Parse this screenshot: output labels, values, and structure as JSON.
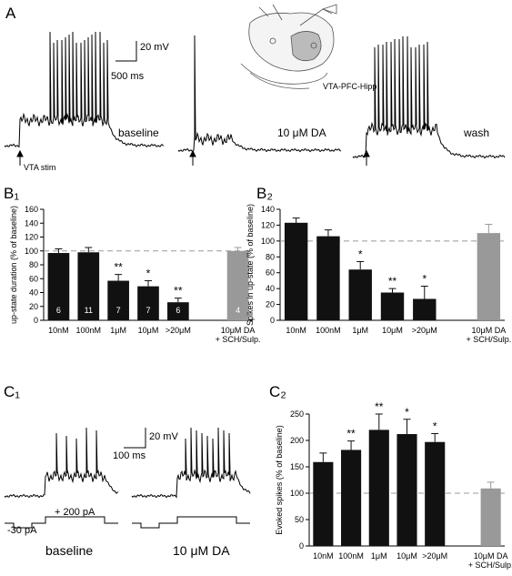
{
  "figure": {
    "panel_a": "A",
    "panel_b1": "B₁",
    "panel_b2": "B₂",
    "panel_c1": "C₁",
    "panel_c2": "C₂",
    "a_scale_mv": "20 mV",
    "a_scale_ms": "500 ms",
    "schematic_label": "VTA-PFC-Hipp",
    "a_trace_baseline": "baseline",
    "a_trace_da": "10 μM DA",
    "a_trace_wash": "wash",
    "stim_label": "VTA stim",
    "c_scale_mv": "20 mV",
    "c_scale_ms": "100 ms",
    "c_neg_current": "-30 pA",
    "c_pos_current": "+ 200 pA",
    "c_trace_baseline": "baseline",
    "c_trace_da": "10 μM DA"
  },
  "chart_data": [
    {
      "type": "bar",
      "y_label": "up-state duration (% of baseline)",
      "categories": [
        "10nM",
        "100nM",
        "1μM",
        "10μM",
        ">20μM",
        null,
        [
          "10μM DA",
          "+ SCH/Sulp."
        ]
      ],
      "values": [
        97,
        98,
        57,
        49,
        26,
        null,
        100
      ],
      "errors": [
        6,
        7,
        9,
        8,
        6,
        null,
        5
      ],
      "colors": [
        "#111111",
        "#111111",
        "#111111",
        "#111111",
        "#111111",
        null,
        "#999999"
      ],
      "significance": [
        null,
        null,
        "**",
        "*",
        "**",
        null,
        null
      ],
      "n_labels": [
        "6",
        "11",
        "7",
        "7",
        "6",
        null,
        "4"
      ],
      "reference_line": 100,
      "ylim": [
        0,
        160
      ],
      "yticks": [
        0,
        20,
        40,
        60,
        80,
        100,
        120,
        140,
        160
      ]
    },
    {
      "type": "bar",
      "y_label": "Spikes in up-state (% of baseline)",
      "categories": [
        "10nM",
        "100nM",
        "1μM",
        "10μM",
        ">20μM",
        null,
        [
          "10μM DA",
          "+ SCH/Sulp."
        ]
      ],
      "values": [
        123,
        106,
        64,
        35,
        27,
        null,
        110
      ],
      "errors": [
        6,
        8,
        10,
        5,
        16,
        null,
        11
      ],
      "colors": [
        "#111111",
        "#111111",
        "#111111",
        "#111111",
        "#111111",
        null,
        "#999999"
      ],
      "significance": [
        null,
        null,
        "*",
        "**",
        "*",
        null,
        null
      ],
      "reference_line": 100,
      "ylim": [
        0,
        140
      ],
      "yticks": [
        0,
        20,
        40,
        60,
        80,
        100,
        120,
        140
      ]
    },
    {
      "type": "bar",
      "y_label": "Evoked spikes (% of baseline)",
      "categories": [
        "10nM",
        "100nM",
        "1μM",
        "10μM",
        ">20μM",
        null,
        [
          "10μM DA",
          "+ SCH/Sulp."
        ]
      ],
      "values": [
        159,
        182,
        220,
        212,
        197,
        null,
        109
      ],
      "errors": [
        17,
        17,
        30,
        28,
        16,
        null,
        12
      ],
      "colors": [
        "#111111",
        "#111111",
        "#111111",
        "#111111",
        "#111111",
        null,
        "#999999"
      ],
      "significance": [
        null,
        "**",
        "**",
        "*",
        "*",
        null,
        null
      ],
      "reference_line": 100,
      "ylim": [
        0,
        250
      ],
      "yticks": [
        0,
        50,
        100,
        150,
        200,
        250
      ]
    }
  ]
}
